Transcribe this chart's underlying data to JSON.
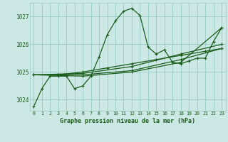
{
  "background_color": "#cce8e4",
  "grid_color": "#99ccc6",
  "line_color": "#1a5c1a",
  "title": "Graphe pression niveau de la mer (hPa)",
  "xlim": [
    -0.5,
    23.5
  ],
  "ylim": [
    1023.6,
    1027.5
  ],
  "yticks": [
    1024,
    1025,
    1026,
    1027
  ],
  "xtick_labels": [
    "0",
    "1",
    "2",
    "3",
    "4",
    "5",
    "6",
    "7",
    "8",
    "9",
    "10",
    "11",
    "12",
    "13",
    "14",
    "15",
    "16",
    "17",
    "18",
    "19",
    "20",
    "21",
    "22",
    "23"
  ],
  "series1_x": [
    0,
    1,
    2,
    3,
    4,
    5,
    6,
    7,
    8,
    9,
    10,
    11,
    12,
    13,
    14,
    15,
    16,
    17,
    18,
    19,
    20,
    21,
    22,
    23
  ],
  "series1_y": [
    1023.75,
    1024.4,
    1024.85,
    1024.85,
    1024.85,
    1024.4,
    1024.5,
    1024.85,
    1025.55,
    1026.35,
    1026.85,
    1027.2,
    1027.3,
    1027.05,
    1025.9,
    1025.65,
    1025.8,
    1025.35,
    1025.3,
    1025.4,
    1025.5,
    1025.5,
    1026.1,
    1026.6
  ],
  "series2_x": [
    3,
    6,
    9,
    12,
    15,
    18,
    21,
    23
  ],
  "series2_y": [
    1024.9,
    1025.0,
    1025.15,
    1025.3,
    1025.45,
    1025.6,
    1025.75,
    1025.85
  ],
  "series3_x": [
    0,
    6,
    12,
    18,
    23
  ],
  "series3_y": [
    1024.9,
    1024.95,
    1025.2,
    1025.65,
    1026.0
  ],
  "series4_x": [
    0,
    6,
    12,
    18,
    23
  ],
  "series4_y": [
    1024.9,
    1024.9,
    1025.05,
    1025.45,
    1025.85
  ],
  "series5_x": [
    0,
    6,
    12,
    18,
    23
  ],
  "series5_y": [
    1024.9,
    1024.85,
    1025.0,
    1025.35,
    1026.6
  ]
}
